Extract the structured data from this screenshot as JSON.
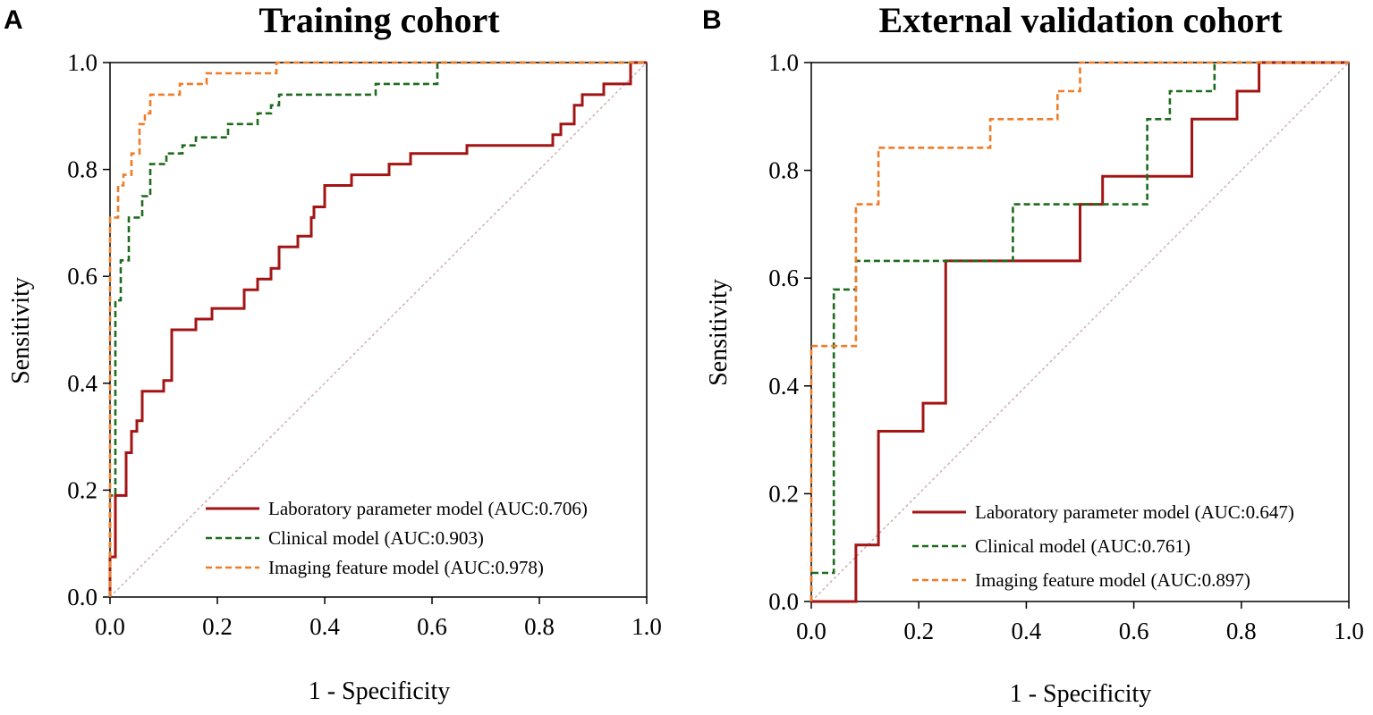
{
  "chart_data": [
    {
      "type": "line",
      "panel_letter": "A",
      "title": "Training cohort",
      "xlabel": "1 - Specificity",
      "ylabel": "Sensitivity",
      "xlim": [
        0,
        1
      ],
      "ylim": [
        0,
        1
      ],
      "xticks": [
        "0.0",
        "0.2",
        "0.4",
        "0.6",
        "0.8",
        "1.0"
      ],
      "yticks": [
        "0.0",
        "0.2",
        "0.4",
        "0.6",
        "0.8",
        "1.0"
      ],
      "legend_position": "bottom-right",
      "diagonal_color": "#c9a6a6",
      "series": [
        {
          "name": "Laboratory parameter model (AUC:0.706)",
          "color": "#a31515",
          "style": "solid",
          "x": [
            0,
            0,
            0.01,
            0.01,
            0.03,
            0.03,
            0.04,
            0.04,
            0.05,
            0.05,
            0.06,
            0.06,
            0.075,
            0.075,
            0.1,
            0.1,
            0.115,
            0.115,
            0.16,
            0.16,
            0.19,
            0.19,
            0.25,
            0.25,
            0.275,
            0.275,
            0.3,
            0.3,
            0.315,
            0.315,
            0.35,
            0.35,
            0.375,
            0.375,
            0.38,
            0.38,
            0.4,
            0.4,
            0.45,
            0.45,
            0.52,
            0.52,
            0.56,
            0.56,
            0.665,
            0.665,
            0.725,
            0.725,
            0.825,
            0.825,
            0.84,
            0.84,
            0.865,
            0.865,
            0.88,
            0.88,
            0.92,
            0.92,
            0.97,
            0.97,
            1.0
          ],
          "y": [
            0,
            0.075,
            0.075,
            0.19,
            0.19,
            0.27,
            0.27,
            0.31,
            0.31,
            0.33,
            0.33,
            0.385,
            0.385,
            0.385,
            0.385,
            0.405,
            0.405,
            0.5,
            0.5,
            0.52,
            0.52,
            0.54,
            0.54,
            0.575,
            0.575,
            0.595,
            0.595,
            0.615,
            0.615,
            0.655,
            0.655,
            0.675,
            0.675,
            0.71,
            0.71,
            0.73,
            0.73,
            0.77,
            0.77,
            0.79,
            0.79,
            0.81,
            0.81,
            0.83,
            0.83,
            0.845,
            0.845,
            0.845,
            0.845,
            0.865,
            0.865,
            0.885,
            0.885,
            0.92,
            0.92,
            0.94,
            0.94,
            0.96,
            0.96,
            1.0,
            1.0
          ]
        },
        {
          "name": "Clinical model (AUC:0.903)",
          "color": "#1e6b1e",
          "style": "dashed",
          "x": [
            0,
            0,
            0.01,
            0.01,
            0.02,
            0.02,
            0.035,
            0.035,
            0.06,
            0.06,
            0.075,
            0.075,
            0.105,
            0.105,
            0.135,
            0.135,
            0.16,
            0.16,
            0.22,
            0.22,
            0.235,
            0.235,
            0.275,
            0.275,
            0.3,
            0.3,
            0.315,
            0.315,
            0.495,
            0.495,
            0.61,
            0.61,
            0.755,
            0.755,
            1.0
          ],
          "y": [
            0,
            0.19,
            0.19,
            0.555,
            0.555,
            0.63,
            0.63,
            0.71,
            0.71,
            0.75,
            0.75,
            0.81,
            0.81,
            0.83,
            0.83,
            0.845,
            0.845,
            0.86,
            0.86,
            0.885,
            0.885,
            0.885,
            0.885,
            0.905,
            0.905,
            0.92,
            0.92,
            0.94,
            0.94,
            0.96,
            0.96,
            1.0,
            1.0,
            1.0,
            1.0
          ]
        },
        {
          "name": "Imaging feature model (AUC:0.978)",
          "color": "#f07c28",
          "style": "dashed",
          "x": [
            0,
            0,
            0.015,
            0.015,
            0.025,
            0.025,
            0.04,
            0.04,
            0.055,
            0.055,
            0.065,
            0.065,
            0.075,
            0.075,
            0.13,
            0.13,
            0.18,
            0.18,
            0.3,
            0.3,
            0.31,
            0.31,
            1.0
          ],
          "y": [
            0,
            0.71,
            0.71,
            0.77,
            0.77,
            0.79,
            0.79,
            0.83,
            0.83,
            0.885,
            0.885,
            0.905,
            0.905,
            0.94,
            0.94,
            0.96,
            0.96,
            0.98,
            0.98,
            0.98,
            0.98,
            1.0,
            1.0
          ]
        }
      ]
    },
    {
      "type": "line",
      "panel_letter": "B",
      "title": "External validation cohort",
      "xlabel": "1 - Specificity",
      "ylabel": "Sensitivity",
      "xlim": [
        0,
        1
      ],
      "ylim": [
        0,
        1
      ],
      "xticks": [
        "0.0",
        "0.2",
        "0.4",
        "0.6",
        "0.8",
        "1.0"
      ],
      "yticks": [
        "0.0",
        "0.2",
        "0.4",
        "0.6",
        "0.8",
        "1.0"
      ],
      "legend_position": "bottom-right",
      "diagonal_color": "#c9a6a6",
      "series": [
        {
          "name": "Laboratory parameter model (AUC:0.647)",
          "color": "#a31515",
          "style": "solid",
          "x": [
            0,
            0.083,
            0.083,
            0.125,
            0.125,
            0.208,
            0.208,
            0.25,
            0.25,
            0.5,
            0.5,
            0.542,
            0.542,
            0.708,
            0.708,
            0.792,
            0.792,
            0.833,
            0.833,
            1.0
          ],
          "y": [
            0,
            0,
            0.105,
            0.105,
            0.316,
            0.316,
            0.368,
            0.368,
            0.632,
            0.632,
            0.737,
            0.737,
            0.789,
            0.789,
            0.895,
            0.895,
            0.947,
            0.947,
            1.0,
            1.0
          ]
        },
        {
          "name": "Clinical model (AUC:0.761)",
          "color": "#1e6b1e",
          "style": "dashed",
          "x": [
            0,
            0,
            0.042,
            0.042,
            0.083,
            0.083,
            0.375,
            0.375,
            0.625,
            0.625,
            0.667,
            0.667,
            0.708,
            0.708,
            0.75,
            0.75,
            1.0
          ],
          "y": [
            0,
            0.053,
            0.053,
            0.579,
            0.579,
            0.632,
            0.632,
            0.737,
            0.737,
            0.895,
            0.895,
            0.947,
            0.947,
            0.947,
            0.947,
            1.0,
            1.0
          ]
        },
        {
          "name": "Imaging feature model (AUC:0.897)",
          "color": "#f07c28",
          "style": "dashed",
          "x": [
            0,
            0,
            0.083,
            0.083,
            0.125,
            0.125,
            0.333,
            0.333,
            0.458,
            0.458,
            0.5,
            0.5,
            1.0
          ],
          "y": [
            0,
            0.474,
            0.474,
            0.737,
            0.737,
            0.842,
            0.842,
            0.895,
            0.895,
            0.947,
            0.947,
            1.0,
            1.0
          ]
        }
      ]
    }
  ]
}
